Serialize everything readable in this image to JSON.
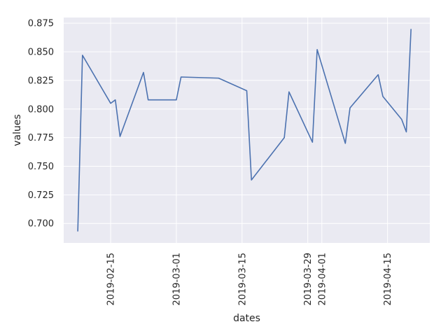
{
  "chart_data": {
    "type": "line",
    "xlabel": "dates",
    "ylabel": "values",
    "x_ticks": [
      "2019-02-15",
      "2019-03-01",
      "2019-03-15",
      "2019-03-29",
      "2019-04-01",
      "2019-04-15"
    ],
    "y_ticks": [
      "0.700",
      "0.725",
      "0.750",
      "0.775",
      "0.800",
      "0.825",
      "0.850",
      "0.875"
    ],
    "xlim": [
      "2019-02-05",
      "2019-04-24"
    ],
    "ylim": [
      0.683,
      0.88
    ],
    "grid": true,
    "background": "#EAEAF2",
    "series": [
      {
        "color": "#4C72B0",
        "points": [
          {
            "x": "2019-02-08",
            "y": 0.693
          },
          {
            "x": "2019-02-09",
            "y": 0.847
          },
          {
            "x": "2019-02-15",
            "y": 0.805
          },
          {
            "x": "2019-02-16",
            "y": 0.808
          },
          {
            "x": "2019-02-17",
            "y": 0.776
          },
          {
            "x": "2019-02-22",
            "y": 0.832
          },
          {
            "x": "2019-02-23",
            "y": 0.808
          },
          {
            "x": "2019-03-01",
            "y": 0.808
          },
          {
            "x": "2019-03-02",
            "y": 0.828
          },
          {
            "x": "2019-03-10",
            "y": 0.827
          },
          {
            "x": "2019-03-16",
            "y": 0.816
          },
          {
            "x": "2019-03-17",
            "y": 0.738
          },
          {
            "x": "2019-03-24",
            "y": 0.775
          },
          {
            "x": "2019-03-25",
            "y": 0.815
          },
          {
            "x": "2019-03-30",
            "y": 0.771
          },
          {
            "x": "2019-03-31",
            "y": 0.852
          },
          {
            "x": "2019-04-06",
            "y": 0.77
          },
          {
            "x": "2019-04-07",
            "y": 0.801
          },
          {
            "x": "2019-04-13",
            "y": 0.83
          },
          {
            "x": "2019-04-14",
            "y": 0.811
          },
          {
            "x": "2019-04-18",
            "y": 0.791
          },
          {
            "x": "2019-04-19",
            "y": 0.78
          },
          {
            "x": "2019-04-20",
            "y": 0.87
          }
        ]
      }
    ]
  }
}
